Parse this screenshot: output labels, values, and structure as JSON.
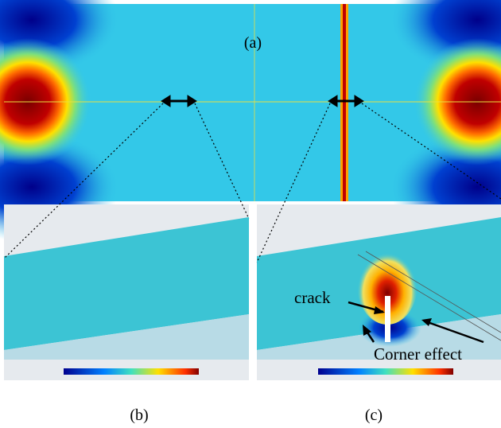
{
  "panels": [
    {
      "label": "(a)"
    },
    {
      "label": "(b)"
    },
    {
      "label": "(c)"
    }
  ],
  "annotations": {
    "crack": "crack",
    "corner": "Corner effect"
  }
}
